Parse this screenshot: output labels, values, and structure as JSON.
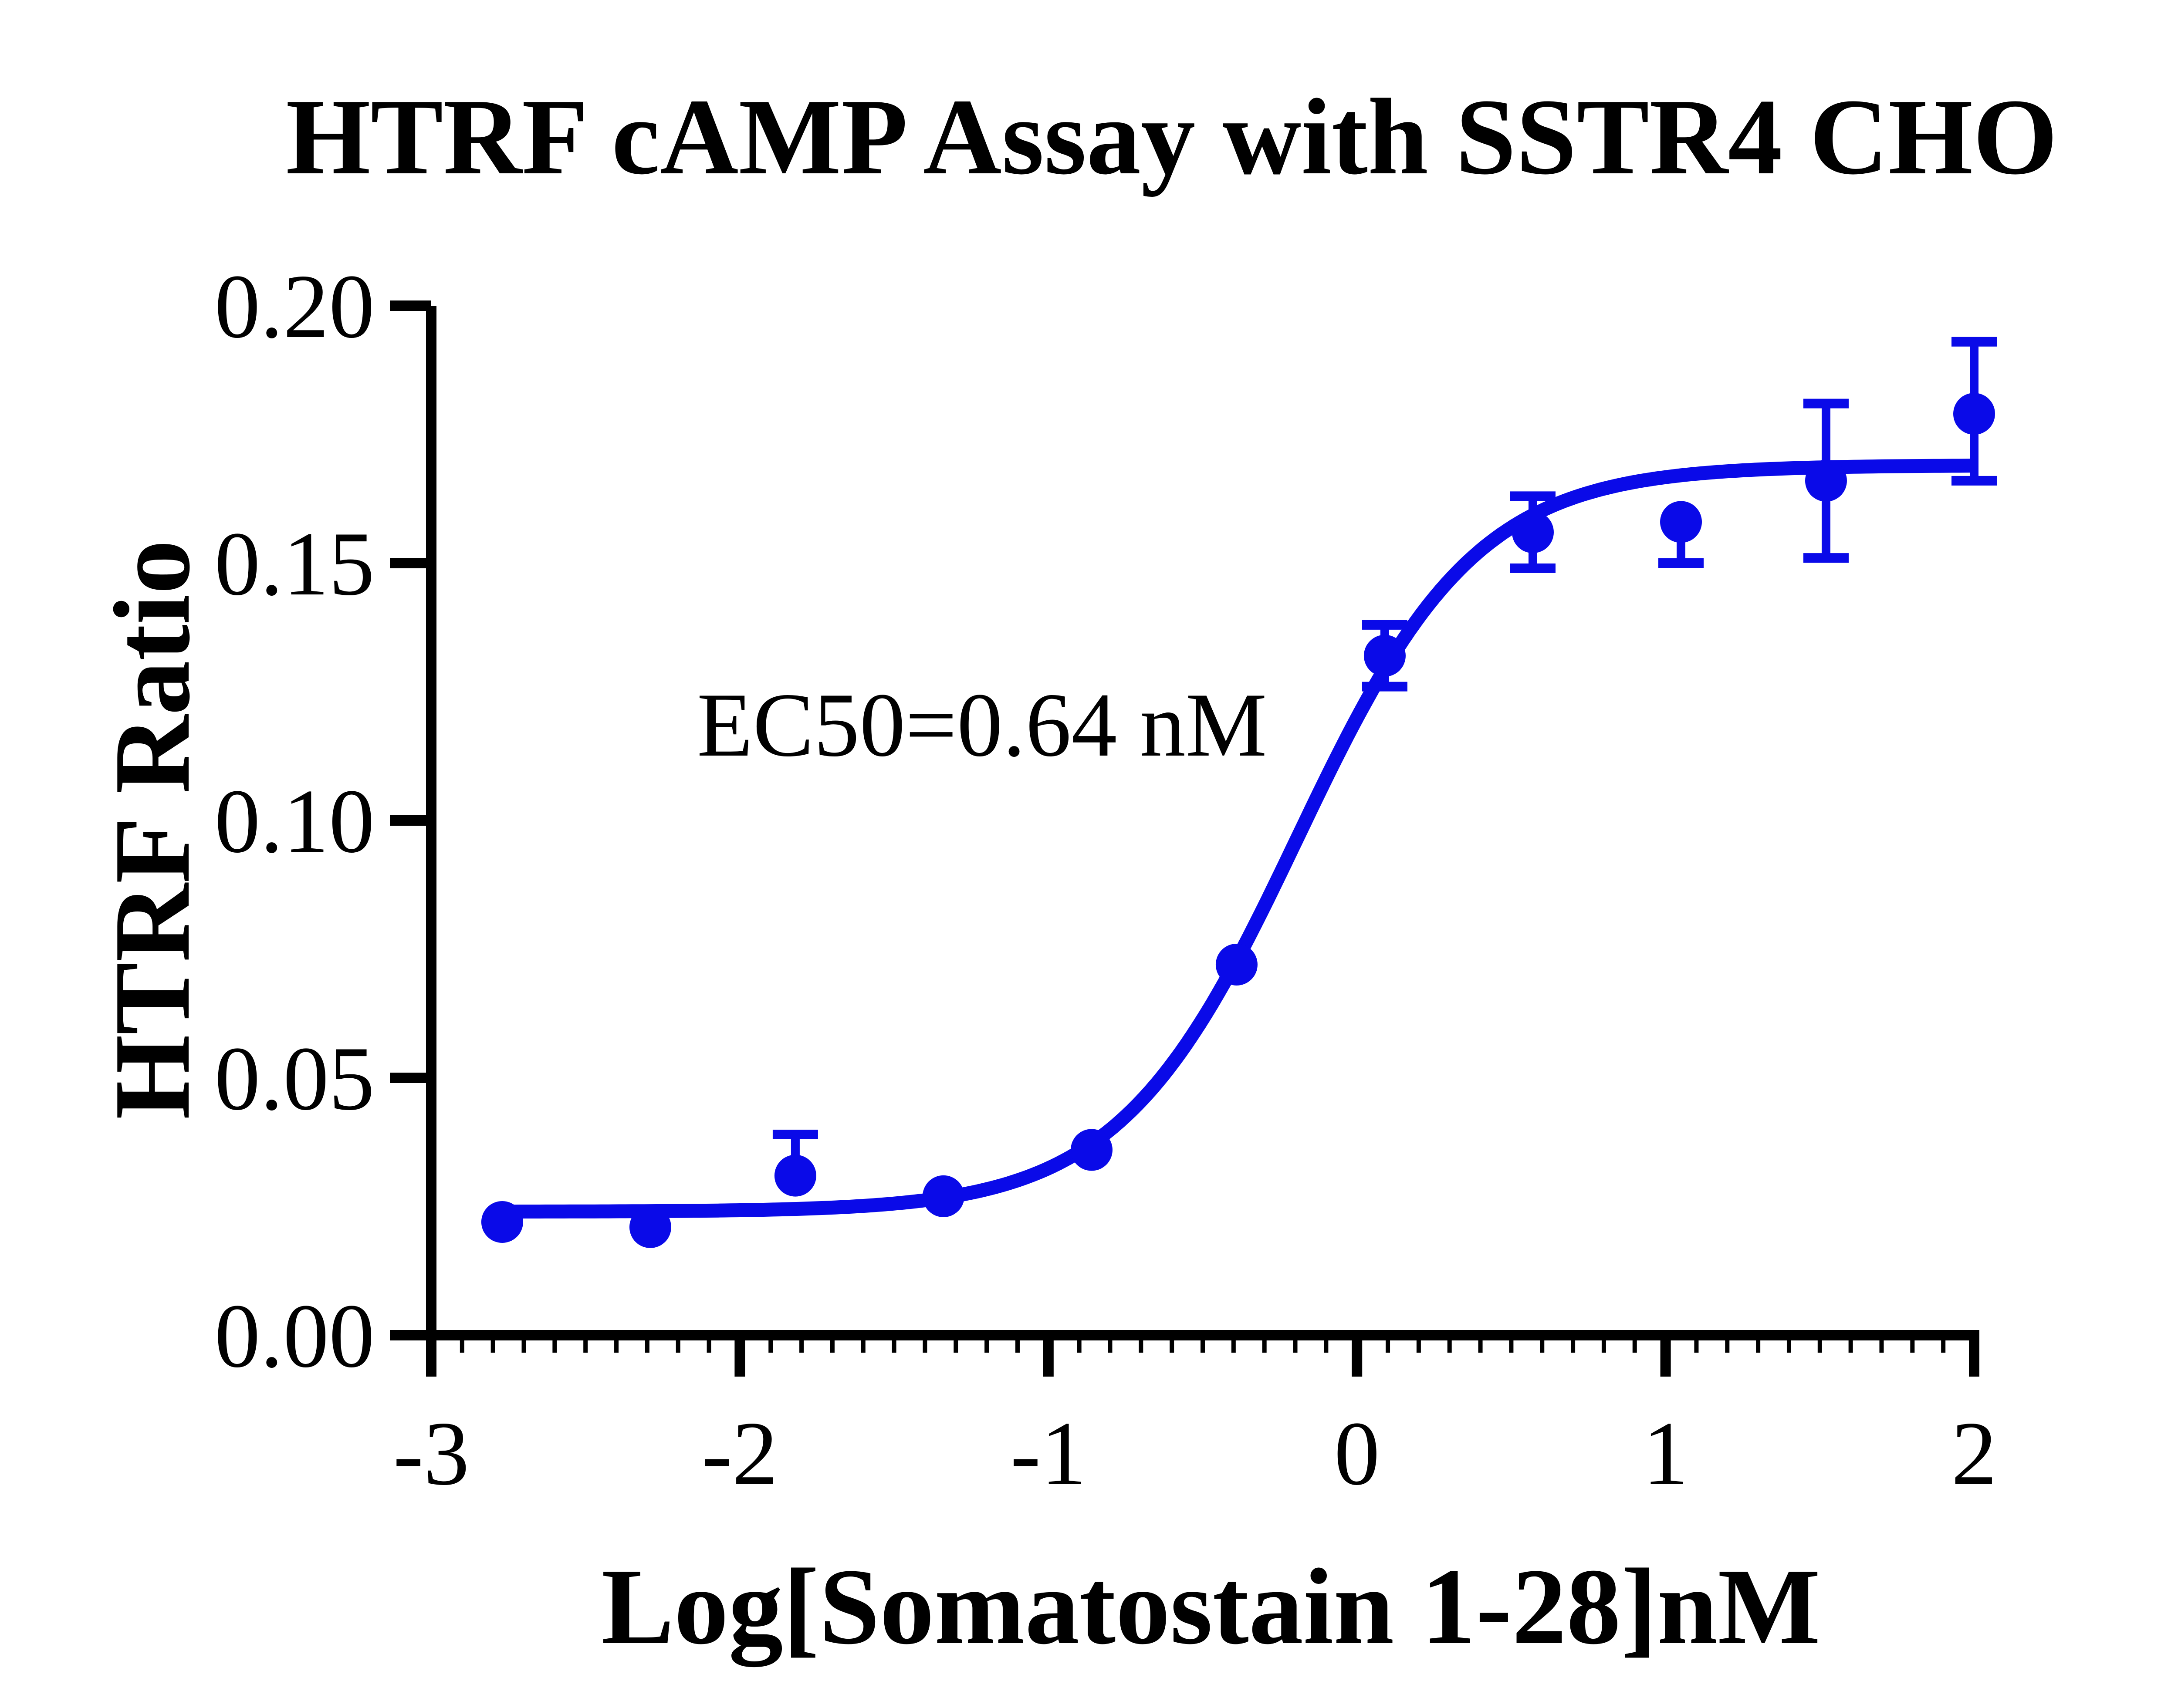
{
  "title": "HTRF cAMP Assay with SSTR4 CHO",
  "annotation_text": "EC50=0.64 nM",
  "colors": {
    "curve": "#0A0AE8",
    "marker": "#0A0AE8",
    "axis": "#000000",
    "text": "#000000",
    "background": "#FFFFFF"
  },
  "chart_data": {
    "type": "scatter",
    "subtype": "dose-response-sigmoidal-4PL",
    "title": "HTRF cAMP Assay with SSTR4 CHO",
    "xlabel": "Log[Somatostain 1-28]nM",
    "ylabel": "HTRF Ratio",
    "xlim": [
      -3,
      2
    ],
    "ylim": [
      0.0,
      0.2
    ],
    "x_ticks": [
      -3,
      -2,
      -1,
      0,
      1,
      2
    ],
    "x_tick_labels": [
      "-3",
      "-2",
      "-1",
      "0",
      "1",
      "2"
    ],
    "x_minor_tick_step": 0.1,
    "y_ticks": [
      0,
      0.05,
      0.1,
      0.15,
      0.2
    ],
    "y_tick_labels": [
      "0.00",
      "0.05",
      "0.10",
      "0.15",
      "0.20"
    ],
    "grid": false,
    "legend": null,
    "series": [
      {
        "name": "Somatostatin 1-28",
        "marker": "circle",
        "points": [
          {
            "x": -2.77,
            "y": 0.022,
            "err_up": null,
            "err_down": null
          },
          {
            "x": -2.29,
            "y": 0.021,
            "err_up": null,
            "err_down": null
          },
          {
            "x": -1.82,
            "y": 0.031,
            "err_up": 0.008,
            "err_down": null
          },
          {
            "x": -1.34,
            "y": 0.027,
            "err_up": null,
            "err_down": null
          },
          {
            "x": -0.86,
            "y": 0.036,
            "err_up": null,
            "err_down": null
          },
          {
            "x": -0.39,
            "y": 0.072,
            "err_up": null,
            "err_down": null
          },
          {
            "x": 0.09,
            "y": 0.132,
            "err_up": 0.006,
            "err_down": 0.006
          },
          {
            "x": 0.57,
            "y": 0.156,
            "err_up": 0.007,
            "err_down": 0.007
          },
          {
            "x": 1.05,
            "y": 0.158,
            "err_up": null,
            "err_down": 0.008
          },
          {
            "x": 1.52,
            "y": 0.166,
            "err_up": 0.015,
            "err_down": 0.015
          },
          {
            "x": 2.0,
            "y": 0.179,
            "err_up": 0.014,
            "err_down": 0.013
          }
        ]
      }
    ],
    "fit_curve": {
      "model": "4PL",
      "bottom": 0.024,
      "top": 0.169,
      "log_ec50": -0.194,
      "hill_slope": 1.5,
      "x_start": -2.77,
      "x_end": 2.0,
      "ec50_nM": 0.64
    },
    "annotation": {
      "text": "EC50=0.64 nM",
      "x_data": -2.14,
      "y_data": 0.116
    }
  }
}
